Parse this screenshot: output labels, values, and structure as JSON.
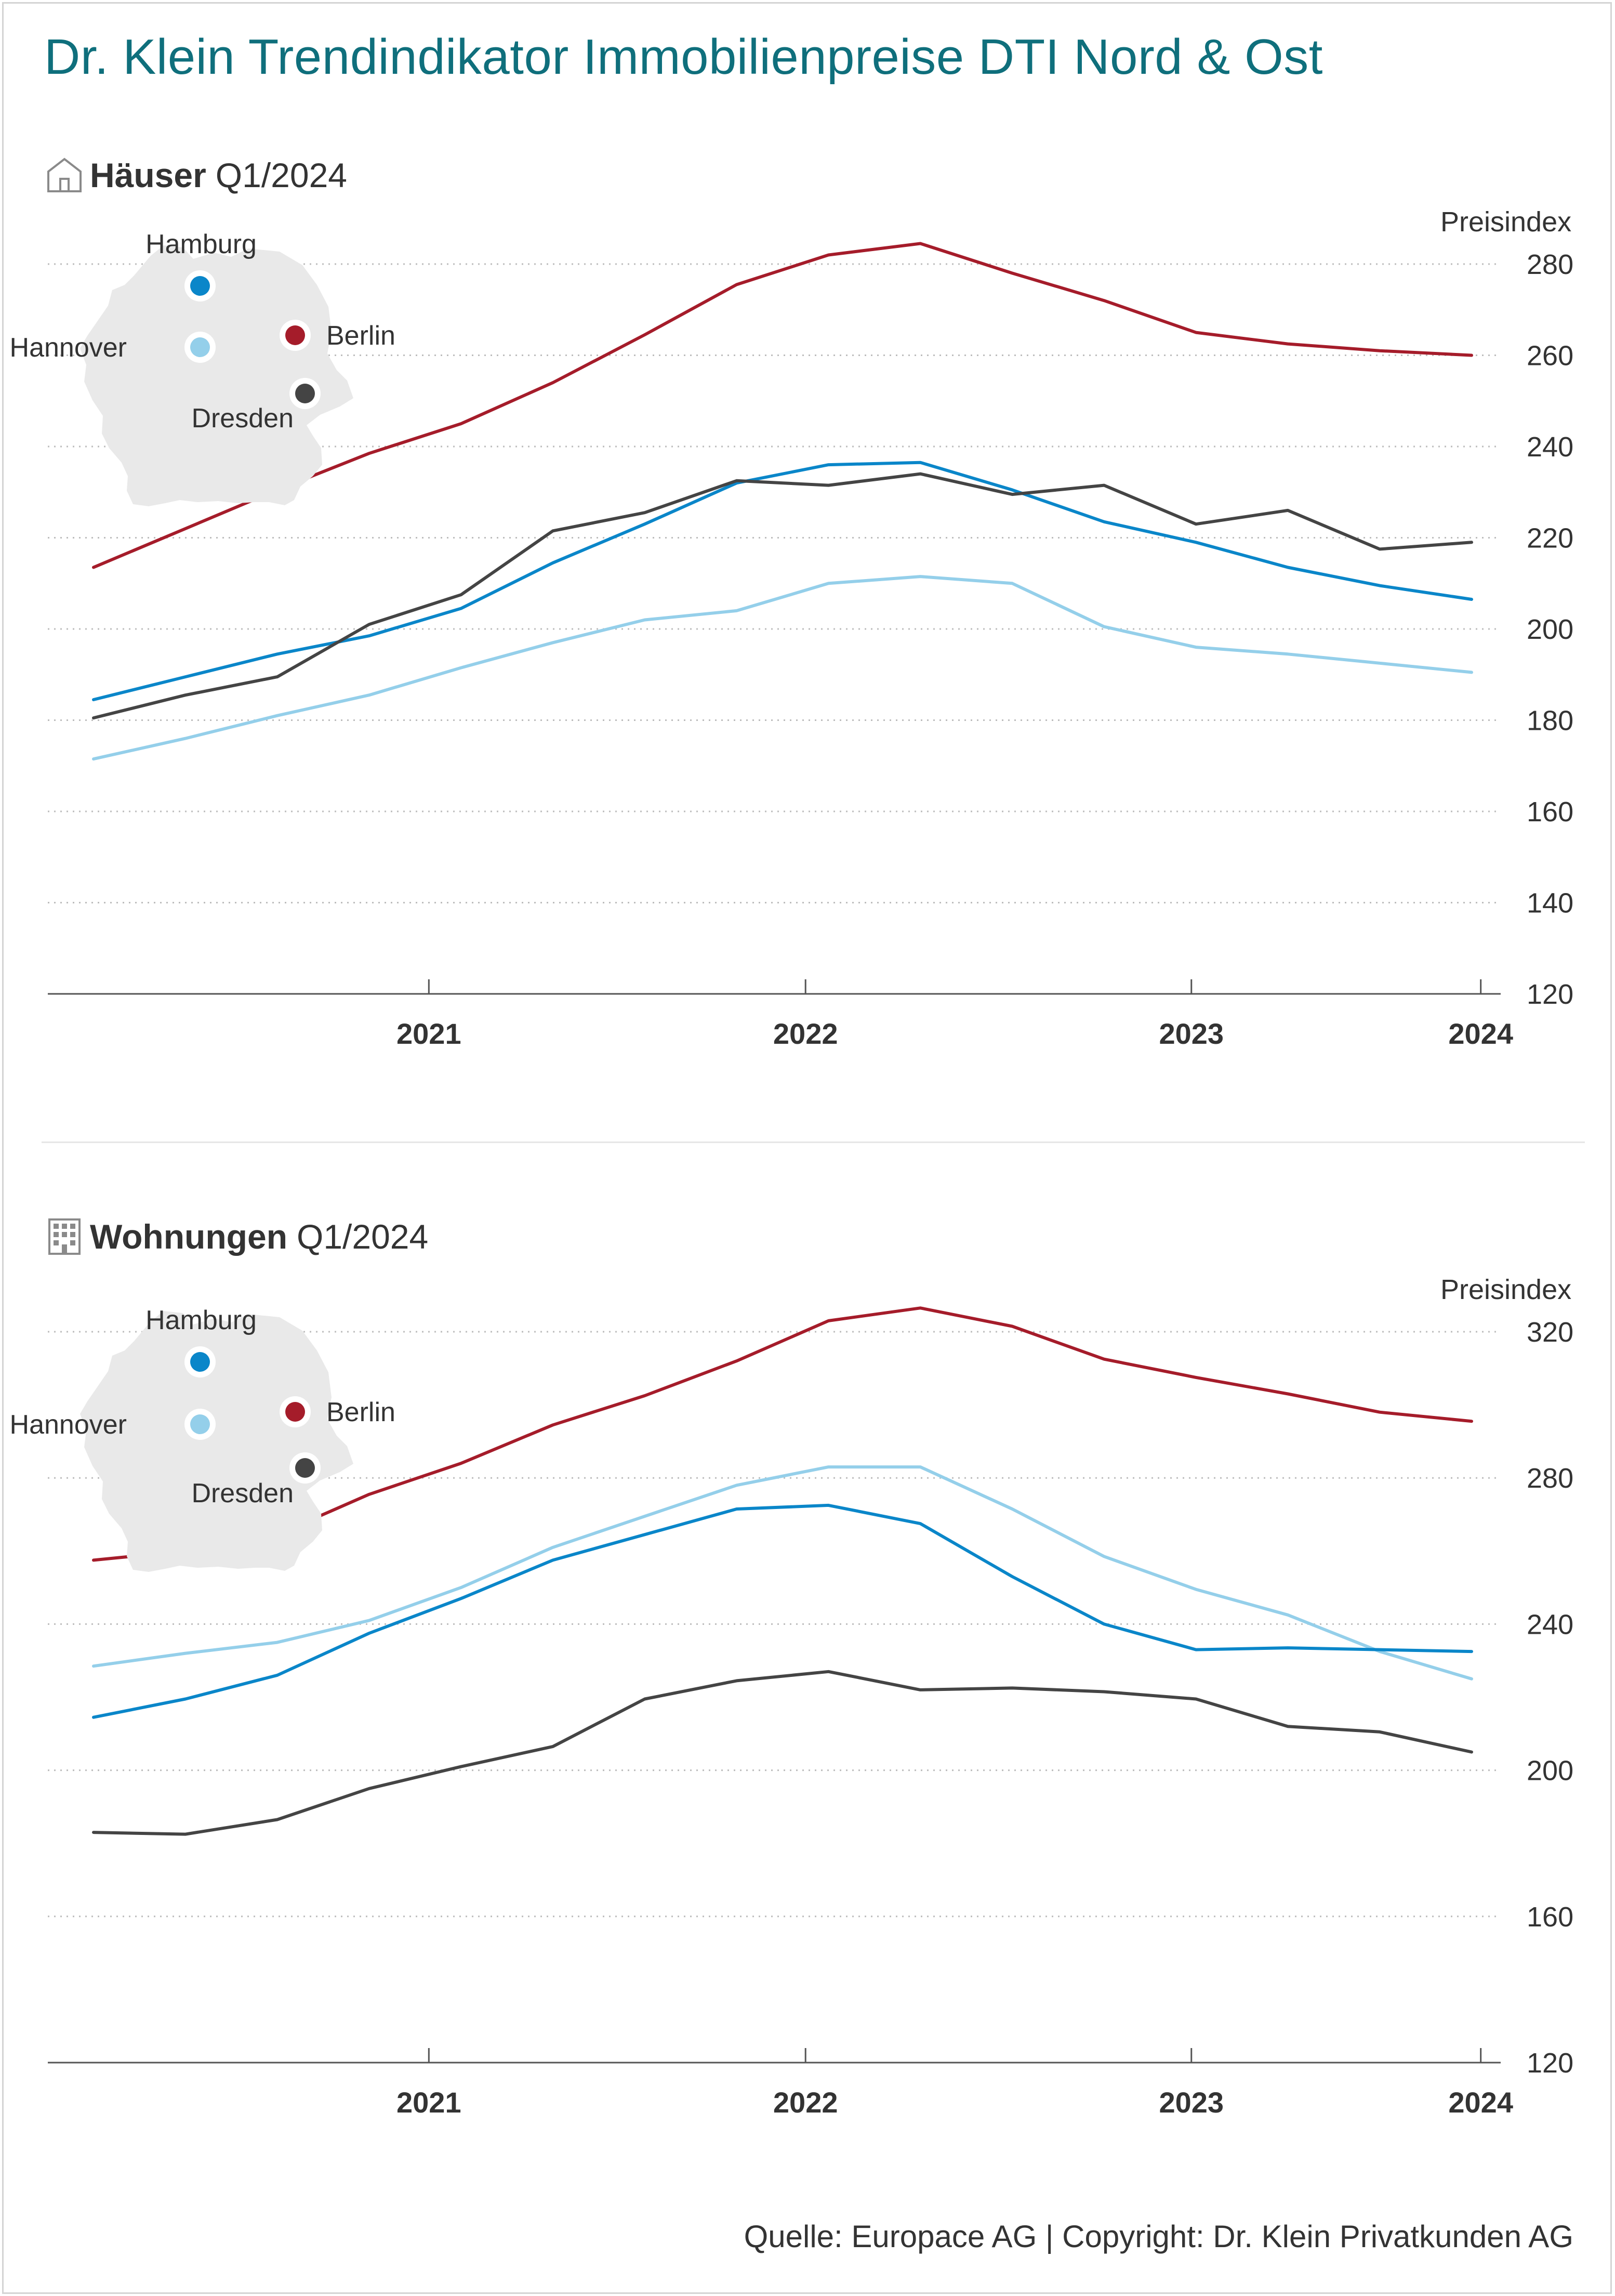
{
  "title": "Dr. Klein Trendindikator Immobilienpreise DTI Nord & Ost",
  "source": "Quelle: Europace AG | Copyright: Dr. Klein Privatkunden AG",
  "colors": {
    "Hamburg": "#0a86c9",
    "Hannover": "#94cfea",
    "Berlin": "#a51c2a",
    "Dresden": "#444444",
    "title": "#0f6f7c",
    "map": "#e9e9e9"
  },
  "icons": {
    "houses": "house-icon",
    "flats": "apartment-building-icon"
  },
  "houses": {
    "label": "Häuser",
    "period": "Q1/2024",
    "ylabel": "Preisindex",
    "map_labels": [
      "Hamburg",
      "Hannover",
      "Berlin",
      "Dresden"
    ]
  },
  "flats": {
    "label": "Wohnungen",
    "period": "Q1/2024",
    "ylabel": "Preisindex",
    "map_labels": [
      "Hamburg",
      "Hannover",
      "Berlin",
      "Dresden"
    ]
  },
  "chart_data": [
    {
      "type": "line",
      "ylabel": "Preisindex",
      "ylim": [
        120,
        280
      ],
      "yticks": [
        120,
        140,
        160,
        180,
        200,
        220,
        240,
        260,
        280
      ],
      "xticks": [
        "2021",
        "2022",
        "2023",
        "2024"
      ],
      "grid": true,
      "legend": "map-top-left",
      "x": [
        "Q2/2020",
        "Q3/2020",
        "Q4/2020",
        "Q1/2021",
        "Q2/2021",
        "Q3/2021",
        "Q4/2021",
        "Q1/2022",
        "Q2/2022",
        "Q3/2022",
        "Q4/2022",
        "Q1/2023",
        "Q2/2023",
        "Q3/2023",
        "Q4/2023",
        "Q1/2024"
      ],
      "series": [
        {
          "name": "Berlin",
          "values": [
            213.5,
            222,
            230.5,
            238.5,
            245,
            254,
            264.5,
            275.5,
            282,
            284.5,
            278,
            272,
            265,
            262.5,
            261,
            260
          ]
        },
        {
          "name": "Hamburg",
          "values": [
            184.5,
            189.5,
            194.5,
            198.5,
            204.5,
            214.5,
            223,
            232,
            236,
            236.5,
            230.5,
            223.5,
            219,
            213.5,
            209.5,
            206.5
          ]
        },
        {
          "name": "Dresden",
          "values": [
            180.5,
            185.5,
            189.5,
            201,
            207.5,
            221.5,
            225.5,
            232.5,
            231.5,
            234,
            229.5,
            231.5,
            223,
            226,
            217.5,
            219
          ]
        },
        {
          "name": "Hannover",
          "values": [
            171.5,
            176,
            181,
            185.5,
            191.5,
            197,
            202,
            204,
            210,
            211.5,
            210,
            200.5,
            196,
            194.5,
            192.5,
            190.5
          ]
        }
      ]
    },
    {
      "type": "line",
      "ylabel": "Preisindex",
      "ylim": [
        120,
        320
      ],
      "yticks": [
        120,
        160,
        200,
        240,
        280,
        320
      ],
      "xticks": [
        "2021",
        "2022",
        "2023",
        "2024"
      ],
      "grid": true,
      "legend": "map-top-left",
      "x": [
        "Q2/2020",
        "Q3/2020",
        "Q4/2020",
        "Q1/2021",
        "Q2/2021",
        "Q3/2021",
        "Q4/2021",
        "Q1/2022",
        "Q2/2022",
        "Q3/2022",
        "Q4/2022",
        "Q1/2023",
        "Q2/2023",
        "Q3/2023",
        "Q4/2023",
        "Q1/2024"
      ],
      "series": [
        {
          "name": "Berlin",
          "values": [
            257.5,
            260,
            264.5,
            275.5,
            284,
            294.5,
            302.5,
            312,
            323,
            326.5,
            321.5,
            312.5,
            307.5,
            303,
            298,
            295.5
          ]
        },
        {
          "name": "Hannover",
          "values": [
            228.5,
            232,
            235,
            241,
            250,
            261,
            269.5,
            278,
            283,
            283,
            271.5,
            258.5,
            249.5,
            242.5,
            232.5,
            225
          ]
        },
        {
          "name": "Hamburg",
          "values": [
            214.5,
            219.5,
            226,
            237.5,
            247,
            257.5,
            264.5,
            271.5,
            272.5,
            267.5,
            253,
            240,
            233,
            233.5,
            233,
            232.5
          ]
        },
        {
          "name": "Dresden",
          "values": [
            183,
            182.5,
            186.5,
            195,
            201,
            206.5,
            219.5,
            224.5,
            227,
            222,
            222.5,
            221.5,
            219.5,
            212,
            210.5,
            205
          ]
        }
      ]
    }
  ]
}
